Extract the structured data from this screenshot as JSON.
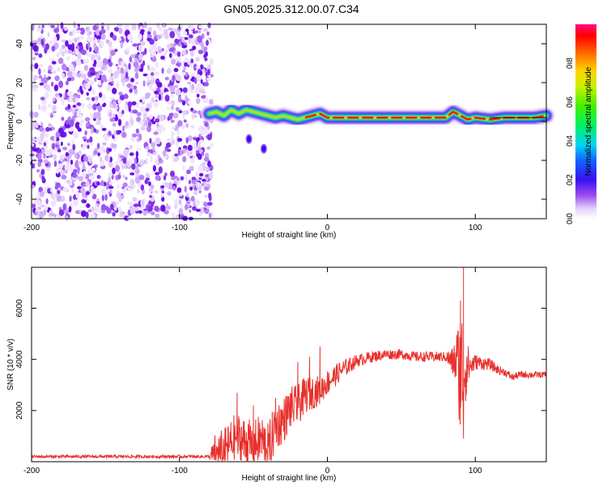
{
  "figure": {
    "title": "GN05.2025.312.00.07.C34"
  },
  "chart_data": [
    {
      "type": "heatmap",
      "panel": "top",
      "xlabel": "Height of straight line (km)",
      "ylabel": "Frequency (Hz)",
      "xlim": [
        -200,
        148
      ],
      "ylim": [
        -50,
        50
      ],
      "xticks": [
        -200,
        -100,
        0,
        100
      ],
      "xtick_labels": [
        "-200",
        "-100",
        "0",
        "100"
      ],
      "yticks": [
        -40,
        -20,
        0,
        20,
        40
      ],
      "ytick_labels": [
        "-40",
        "-20",
        "0",
        "20",
        "40"
      ],
      "noise_region_x": [
        -200,
        -78
      ],
      "signal_track": {
        "x": [
          -80,
          -75,
          -70,
          -65,
          -60,
          -55,
          -50,
          -45,
          -40,
          -35,
          -30,
          -25,
          -20,
          -15,
          -10,
          -5,
          0,
          10,
          20,
          40,
          60,
          80,
          85,
          90,
          95,
          100,
          110,
          120,
          140,
          148
        ],
        "freq": [
          4,
          5,
          3,
          6,
          4,
          6,
          5,
          4,
          3,
          2,
          3,
          2,
          1,
          2,
          3,
          4,
          2,
          2,
          2,
          2,
          2,
          2,
          5,
          3,
          1,
          2,
          1,
          2,
          2,
          3
        ]
      },
      "isolated_blobs": [
        {
          "x": -53,
          "freq": -9
        },
        {
          "x": -43,
          "freq": -14
        }
      ],
      "colorbar": {
        "label": "Normalized spectral amplitude",
        "range": [
          0,
          1
        ],
        "ticks": [
          0.0,
          0.2,
          0.4,
          0.6,
          0.8
        ],
        "tick_labels": [
          "0.0",
          "0.2",
          "0.4",
          "0.6",
          "0.8"
        ]
      }
    },
    {
      "type": "line",
      "panel": "bottom",
      "xlabel": "Height of straight line (km)",
      "ylabel": "SNR (10 * v/v)",
      "xlim": [
        -200,
        148
      ],
      "ylim": [
        0,
        7600
      ],
      "xticks": [
        -200,
        -100,
        0,
        100
      ],
      "xtick_labels": [
        "-200",
        "-100",
        "0",
        "100"
      ],
      "yticks": [
        2000,
        4000,
        6000
      ],
      "ytick_labels": [
        "2000",
        "4000",
        "6000"
      ],
      "color": "#e8302c",
      "envelope": {
        "x": [
          -200,
          -150,
          -100,
          -80,
          -75,
          -68,
          -62,
          -55,
          -50,
          -45,
          -40,
          -35,
          -30,
          -25,
          -20,
          -15,
          -10,
          -5,
          0,
          10,
          20,
          30,
          40,
          50,
          60,
          70,
          80,
          85,
          88,
          90,
          92,
          94,
          96,
          100,
          110,
          115,
          120,
          125,
          130,
          140,
          148
        ],
        "snr": [
          200,
          200,
          200,
          200,
          300,
          500,
          1000,
          700,
          600,
          900,
          500,
          1400,
          1600,
          2100,
          2200,
          2600,
          2700,
          2800,
          3100,
          3600,
          3950,
          4100,
          4200,
          4200,
          4100,
          4100,
          4100,
          3900,
          4000,
          3200,
          3600,
          3800,
          3700,
          3900,
          3800,
          3600,
          3500,
          3300,
          3400,
          3400,
          3400
        ]
      },
      "noise_amplitude": {
        "x": [
          -200,
          -80,
          -76,
          -60,
          -40,
          -20,
          0,
          20,
          40,
          60,
          80,
          85,
          88,
          90,
          92,
          94,
          96,
          100,
          120,
          148
        ],
        "amp": [
          60,
          60,
          800,
          1000,
          1000,
          800,
          500,
          250,
          200,
          200,
          200,
          600,
          1400,
          2600,
          3000,
          1200,
          600,
          300,
          150,
          120
        ]
      },
      "spikes": [
        {
          "x": -61,
          "snr": 2700
        },
        {
          "x": -50,
          "snr": 2200
        },
        {
          "x": -35,
          "snr": 2500
        },
        {
          "x": -20,
          "snr": 3900
        },
        {
          "x": -12,
          "snr": 4100
        },
        {
          "x": -5,
          "snr": 4500
        },
        {
          "x": 90,
          "snr": 6300
        },
        {
          "x": 92,
          "snr": 7600
        },
        {
          "x": 92,
          "snr": 900
        }
      ]
    }
  ]
}
